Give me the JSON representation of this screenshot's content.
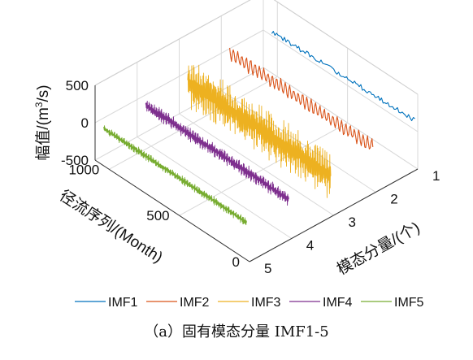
{
  "chart_data": {
    "type": "line",
    "projection": "3d",
    "x_axis": {
      "label": "径流序列/(Month)",
      "ticks": [
        0,
        500,
        1000
      ],
      "tick_labels": [
        "0",
        "500",
        "1000"
      ],
      "range": [
        0,
        1100
      ]
    },
    "y_axis": {
      "label": "模态分量/(个)",
      "ticks": [
        1,
        2,
        3,
        4,
        5
      ],
      "tick_labels": [
        "1",
        "2",
        "3",
        "4",
        "5"
      ],
      "range": [
        1,
        5
      ]
    },
    "z_axis": {
      "label": "幅值/(m³/s)",
      "ticks": [
        -500,
        0,
        500
      ],
      "tick_labels": [
        "-500",
        "0",
        "500"
      ],
      "range": [
        -500,
        500
      ]
    },
    "grid": true,
    "legend_position": "bottom",
    "series": [
      {
        "name": "IMF1",
        "component": 1,
        "color": "#0072BD",
        "level": 80,
        "amplitude": 130,
        "style": "trend"
      },
      {
        "name": "IMF2",
        "component": 2,
        "color": "#D95319",
        "level": 80,
        "amplitude": 120,
        "style": "oscillation"
      },
      {
        "name": "IMF3",
        "component": 3,
        "color": "#EDB120",
        "level": 0,
        "amplitude": 350,
        "style": "dense"
      },
      {
        "name": "IMF4",
        "component": 4,
        "color": "#7E2F8E",
        "level": 0,
        "amplitude": 100,
        "style": "dense"
      },
      {
        "name": "IMF5",
        "component": 5,
        "color": "#77AC30",
        "level": 0,
        "amplitude": 60,
        "style": "dense"
      }
    ]
  },
  "caption": "（a）固有模态分量 IMF1-5"
}
